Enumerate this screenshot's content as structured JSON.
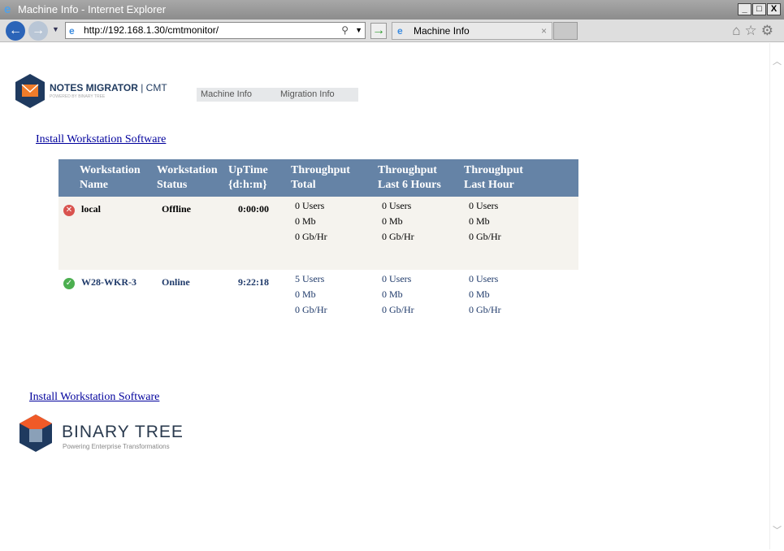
{
  "window": {
    "title": "Machine Info - Internet Explorer"
  },
  "browser": {
    "url": "http://192.168.1.30/cmtmonitor/",
    "tab_label": "Machine Info"
  },
  "header": {
    "brand": "NOTES MIGRATOR",
    "brand_suffix": "| CMT",
    "powered_by": "POWERED BY BINARY TREE",
    "menu": [
      {
        "label": "Machine Info"
      },
      {
        "label": "Migration Info"
      }
    ]
  },
  "links": {
    "install_top": "Install Workstation Software",
    "install_bottom": "Install Workstation Software"
  },
  "table": {
    "headers": [
      [
        "Workstation",
        "Name"
      ],
      [
        "Workstation",
        "Status"
      ],
      [
        "UpTime",
        "{d:h:m}"
      ],
      [
        "Throughput",
        "Total"
      ],
      [
        "Throughput",
        "Last 6 Hours"
      ],
      [
        "Throughput",
        "Last Hour"
      ]
    ],
    "rows": [
      {
        "status_icon": "error-icon",
        "name": "local",
        "status": "Offline",
        "uptime": "0:00:00",
        "total": [
          "0 Users",
          "0 Mb",
          "0 Gb/Hr"
        ],
        "last6": [
          "0 Users",
          "0 Mb",
          "0 Gb/Hr"
        ],
        "last1": [
          "0 Users",
          "0 Mb",
          "0 Gb/Hr"
        ]
      },
      {
        "status_icon": "check-icon",
        "name": "W28-WKR-3",
        "status": "Online",
        "uptime": "9:22:18",
        "total": [
          "5 Users",
          "0 Mb",
          "0 Gb/Hr"
        ],
        "last6": [
          "0 Users",
          "0 Mb",
          "0 Gb/Hr"
        ],
        "last1": [
          "0 Users",
          "0 Mb",
          "0 Gb/Hr"
        ]
      }
    ]
  },
  "footer": {
    "logo_name": "BINARY TREE",
    "tagline": "Powering Enterprise Transformations"
  },
  "colors": {
    "header_bg": "#6583a6",
    "offline": "#d9534f",
    "online": "#4caf50",
    "link": "#00009c"
  }
}
